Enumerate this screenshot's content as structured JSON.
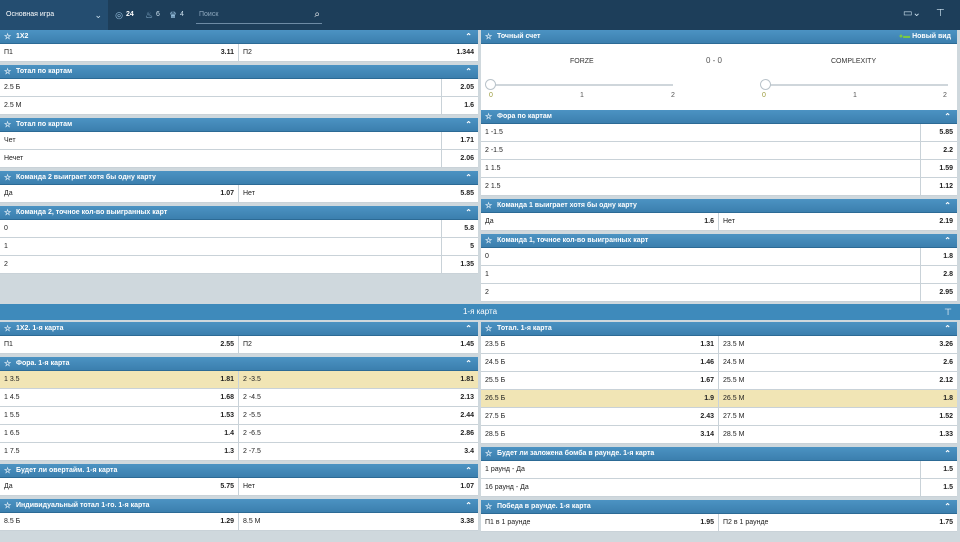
{
  "topbar": {
    "tab_label": "Основная игра",
    "filters": [
      {
        "icon": "target-icon",
        "count": "24"
      },
      {
        "icon": "fire-icon",
        "count": "6"
      },
      {
        "icon": "trophy-icon",
        "count": "4"
      }
    ],
    "search_placeholder": "Поиск"
  },
  "left_top": [
    {
      "title": "1X2",
      "rows": [
        [
          "П1",
          "3.11",
          "П2",
          "1.344"
        ]
      ]
    },
    {
      "title": "Тотал по картам",
      "rows": [
        [
          "2.5 Б",
          "2.05"
        ],
        [
          "2.5 М",
          "1.6"
        ]
      ]
    },
    {
      "title": "Тотал по картам",
      "rows": [
        [
          "Чет",
          "1.71"
        ],
        [
          "Нечет",
          "2.06"
        ]
      ]
    },
    {
      "title": "Команда 2 выиграет хотя бы одну карту",
      "rows": [
        [
          "Да",
          "1.07",
          "Нет",
          "5.85"
        ]
      ]
    },
    {
      "title": "Команда 2, точное кол-во выигранных карт",
      "rows": [
        [
          "0",
          "5.8"
        ],
        [
          "1",
          "5"
        ],
        [
          "2",
          "1.35"
        ]
      ]
    }
  ],
  "right_top": {
    "score_panel": {
      "title": "Точный счет",
      "new_view_label": "Новый вид",
      "team1": "FORZE",
      "team2": "COMPLEXITY",
      "score": "0 - 0",
      "ticks": [
        "0",
        "1",
        "2"
      ]
    },
    "sections": [
      {
        "title": "Фора по картам",
        "rows": [
          [
            "1 -1.5",
            "5.85"
          ],
          [
            "2 -1.5",
            "2.2"
          ],
          [
            "1 1.5",
            "1.59"
          ],
          [
            "2 1.5",
            "1.12"
          ]
        ]
      },
      {
        "title": "Команда 1 выиграет хотя бы одну карту",
        "rows": [
          [
            "Да",
            "1.6",
            "Нет",
            "2.19"
          ]
        ]
      },
      {
        "title": "Команда 1, точное кол-во выигранных карт",
        "rows": [
          [
            "0",
            "1.8"
          ],
          [
            "1",
            "2.8"
          ],
          [
            "2",
            "2.95"
          ]
        ]
      }
    ]
  },
  "map_bar": {
    "title": "1-я карта"
  },
  "left_bottom": [
    {
      "title": "1X2. 1-я карта",
      "rows": [
        [
          "П1",
          "2.55",
          "П2",
          "1.45"
        ]
      ]
    },
    {
      "title": "Фора. 1-я карта",
      "highlight": 0,
      "rows": [
        [
          "1 3.5",
          "1.81",
          "2 -3.5",
          "1.81"
        ],
        [
          "1 4.5",
          "1.68",
          "2 -4.5",
          "2.13"
        ],
        [
          "1 5.5",
          "1.53",
          "2 -5.5",
          "2.44"
        ],
        [
          "1 6.5",
          "1.4",
          "2 -6.5",
          "2.86"
        ],
        [
          "1 7.5",
          "1.3",
          "2 -7.5",
          "3.4"
        ]
      ]
    },
    {
      "title": "Будет ли овертайм. 1-я карта",
      "rows": [
        [
          "Да",
          "5.75",
          "Нет",
          "1.07"
        ]
      ]
    },
    {
      "title": "Индивидуальный тотал 1-го. 1-я карта",
      "rows": [
        [
          "8.5 Б",
          "1.29",
          "8.5 М",
          "3.38"
        ]
      ]
    }
  ],
  "right_bottom": [
    {
      "title": "Тотал. 1-я карта",
      "highlight": 3,
      "rows": [
        [
          "23.5 Б",
          "1.31",
          "23.5 М",
          "3.26"
        ],
        [
          "24.5 Б",
          "1.46",
          "24.5 М",
          "2.6"
        ],
        [
          "25.5 Б",
          "1.67",
          "25.5 М",
          "2.12"
        ],
        [
          "26.5 Б",
          "1.9",
          "26.5 М",
          "1.8"
        ],
        [
          "27.5 Б",
          "2.43",
          "27.5 М",
          "1.52"
        ],
        [
          "28.5 Б",
          "3.14",
          "28.5 М",
          "1.33"
        ]
      ]
    },
    {
      "title": "Будет ли заложена бомба в раунде. 1-я карта",
      "rows": [
        [
          "1 раунд - Да",
          "1.5"
        ],
        [
          "16 раунд - Да",
          "1.5"
        ]
      ]
    },
    {
      "title": "Победа в раунде. 1-я карта",
      "rows": [
        [
          "П1 в 1 раунде",
          "1.95",
          "П2 в 1 раунде",
          "1.75"
        ]
      ]
    }
  ],
  "colors": {
    "header": "#3f85b4",
    "topbar": "#1d3e5a",
    "highlight": "#f1e5b5"
  }
}
